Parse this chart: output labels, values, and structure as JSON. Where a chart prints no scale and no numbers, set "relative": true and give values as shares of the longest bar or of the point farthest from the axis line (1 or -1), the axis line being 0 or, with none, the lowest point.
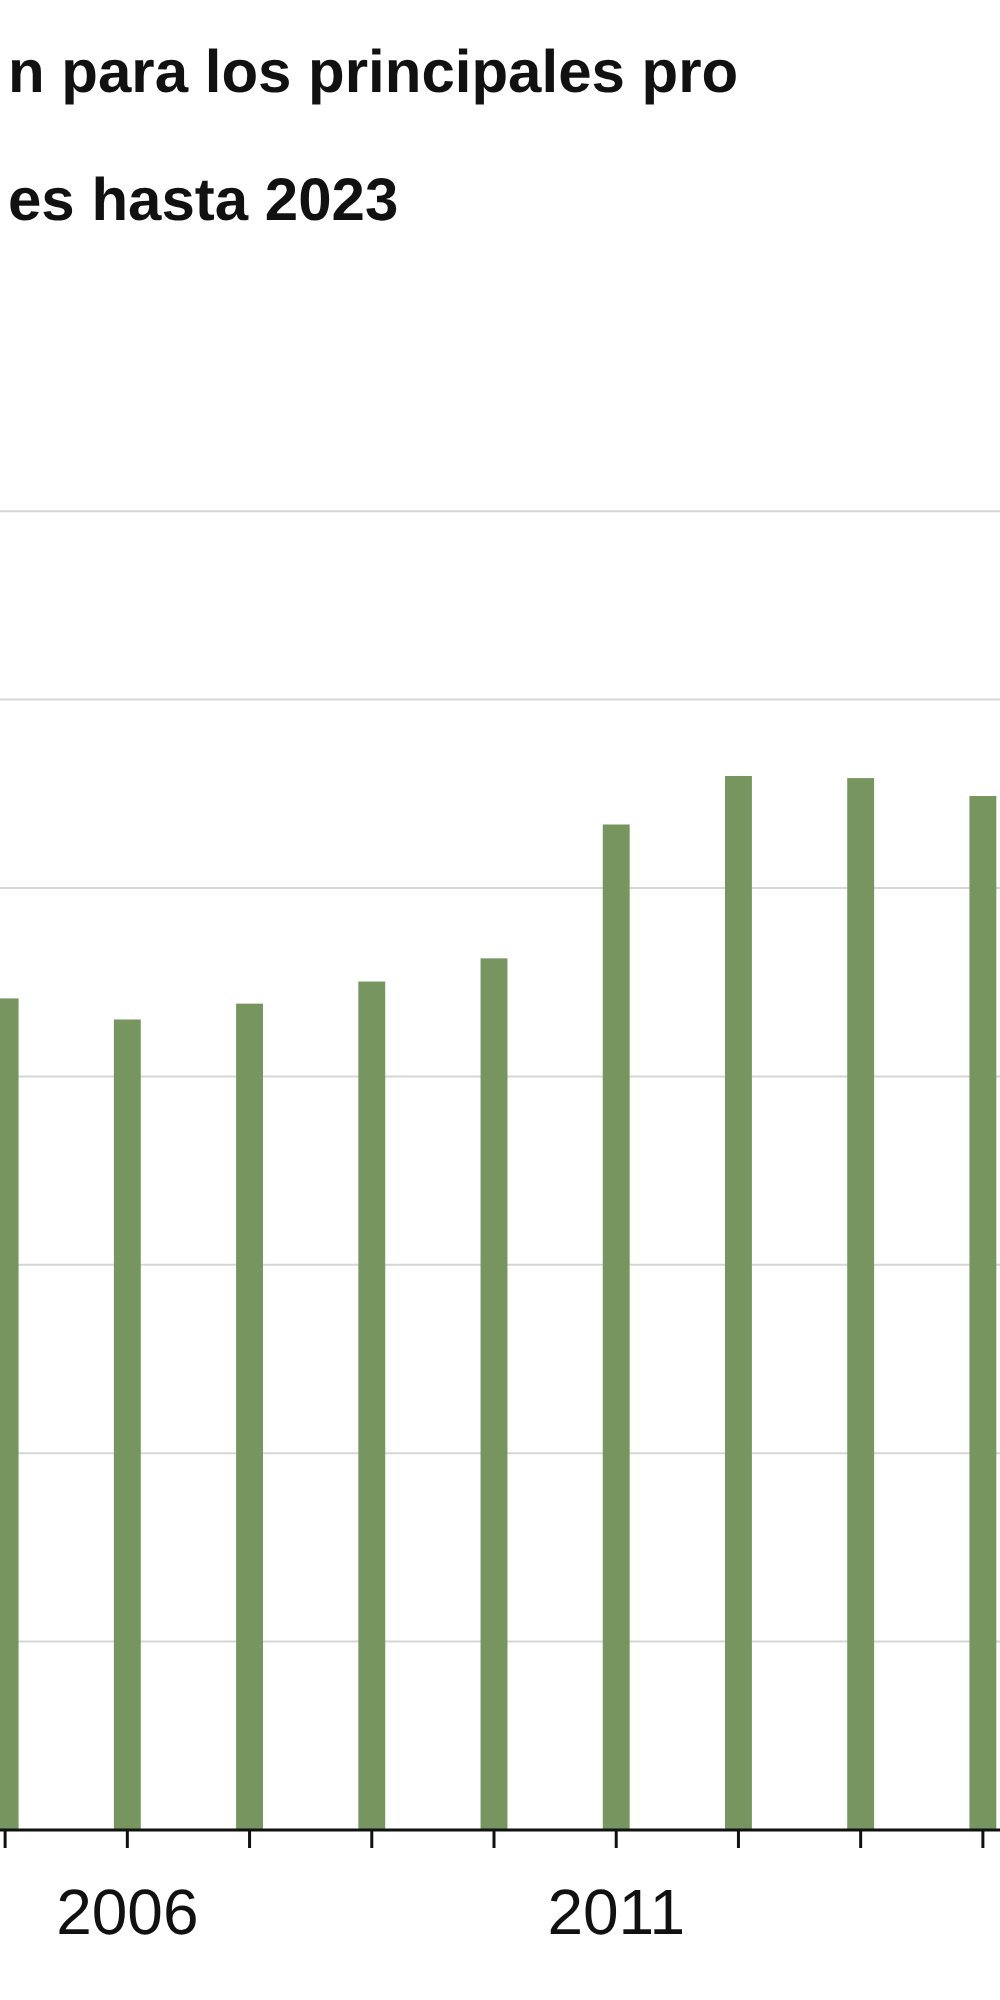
{
  "chart_data": {
    "type": "bar",
    "title": "n para los principales pro",
    "subtitle": "es hasta 2023",
    "categories": [
      null,
      "2006",
      null,
      null,
      null,
      "2011",
      null,
      null,
      null
    ],
    "values": [
      0.789,
      0.769,
      0.784,
      0.805,
      0.827,
      0.954,
      1,
      0.998,
      0.981
    ],
    "color": "#76955f",
    "relative": true,
    "grid": "y"
  }
}
